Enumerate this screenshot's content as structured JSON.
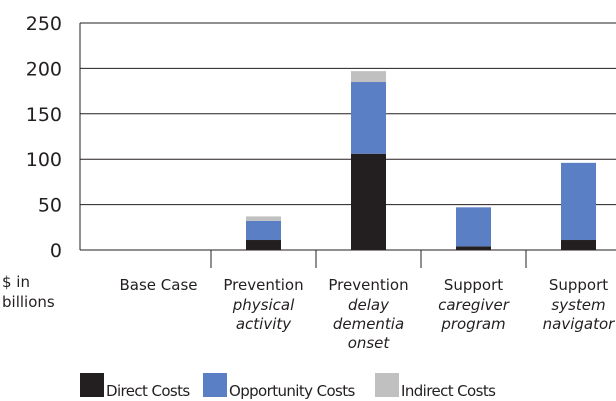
{
  "chart_data": {
    "type": "stacked_bar",
    "categories": [
      "Base Case",
      "Prevention",
      "Prevention",
      "Support",
      "Support"
    ],
    "category_subtitles": [
      null,
      [
        "physical",
        "activity"
      ],
      [
        "delay",
        "dementia",
        "onset"
      ],
      [
        "caregiver",
        "program"
      ],
      [
        "system",
        "navigator"
      ]
    ],
    "series": [
      {
        "name": "Direct Costs",
        "color": "#231f20",
        "values": [
          0,
          11,
          106,
          4,
          11
        ]
      },
      {
        "name": "Opportunity Costs",
        "color": "#5b7fc4",
        "values": [
          0,
          21,
          79,
          43,
          85
        ]
      },
      {
        "name": "Indirect Costs",
        "color": "#c0c0c0",
        "values": [
          0,
          5,
          12,
          0,
          0
        ]
      }
    ],
    "y_label": [
      "$ in",
      "billions"
    ],
    "ylim": [
      0,
      250
    ],
    "yticks": [
      0,
      50,
      100,
      150,
      200,
      250
    ],
    "grid": true
  }
}
